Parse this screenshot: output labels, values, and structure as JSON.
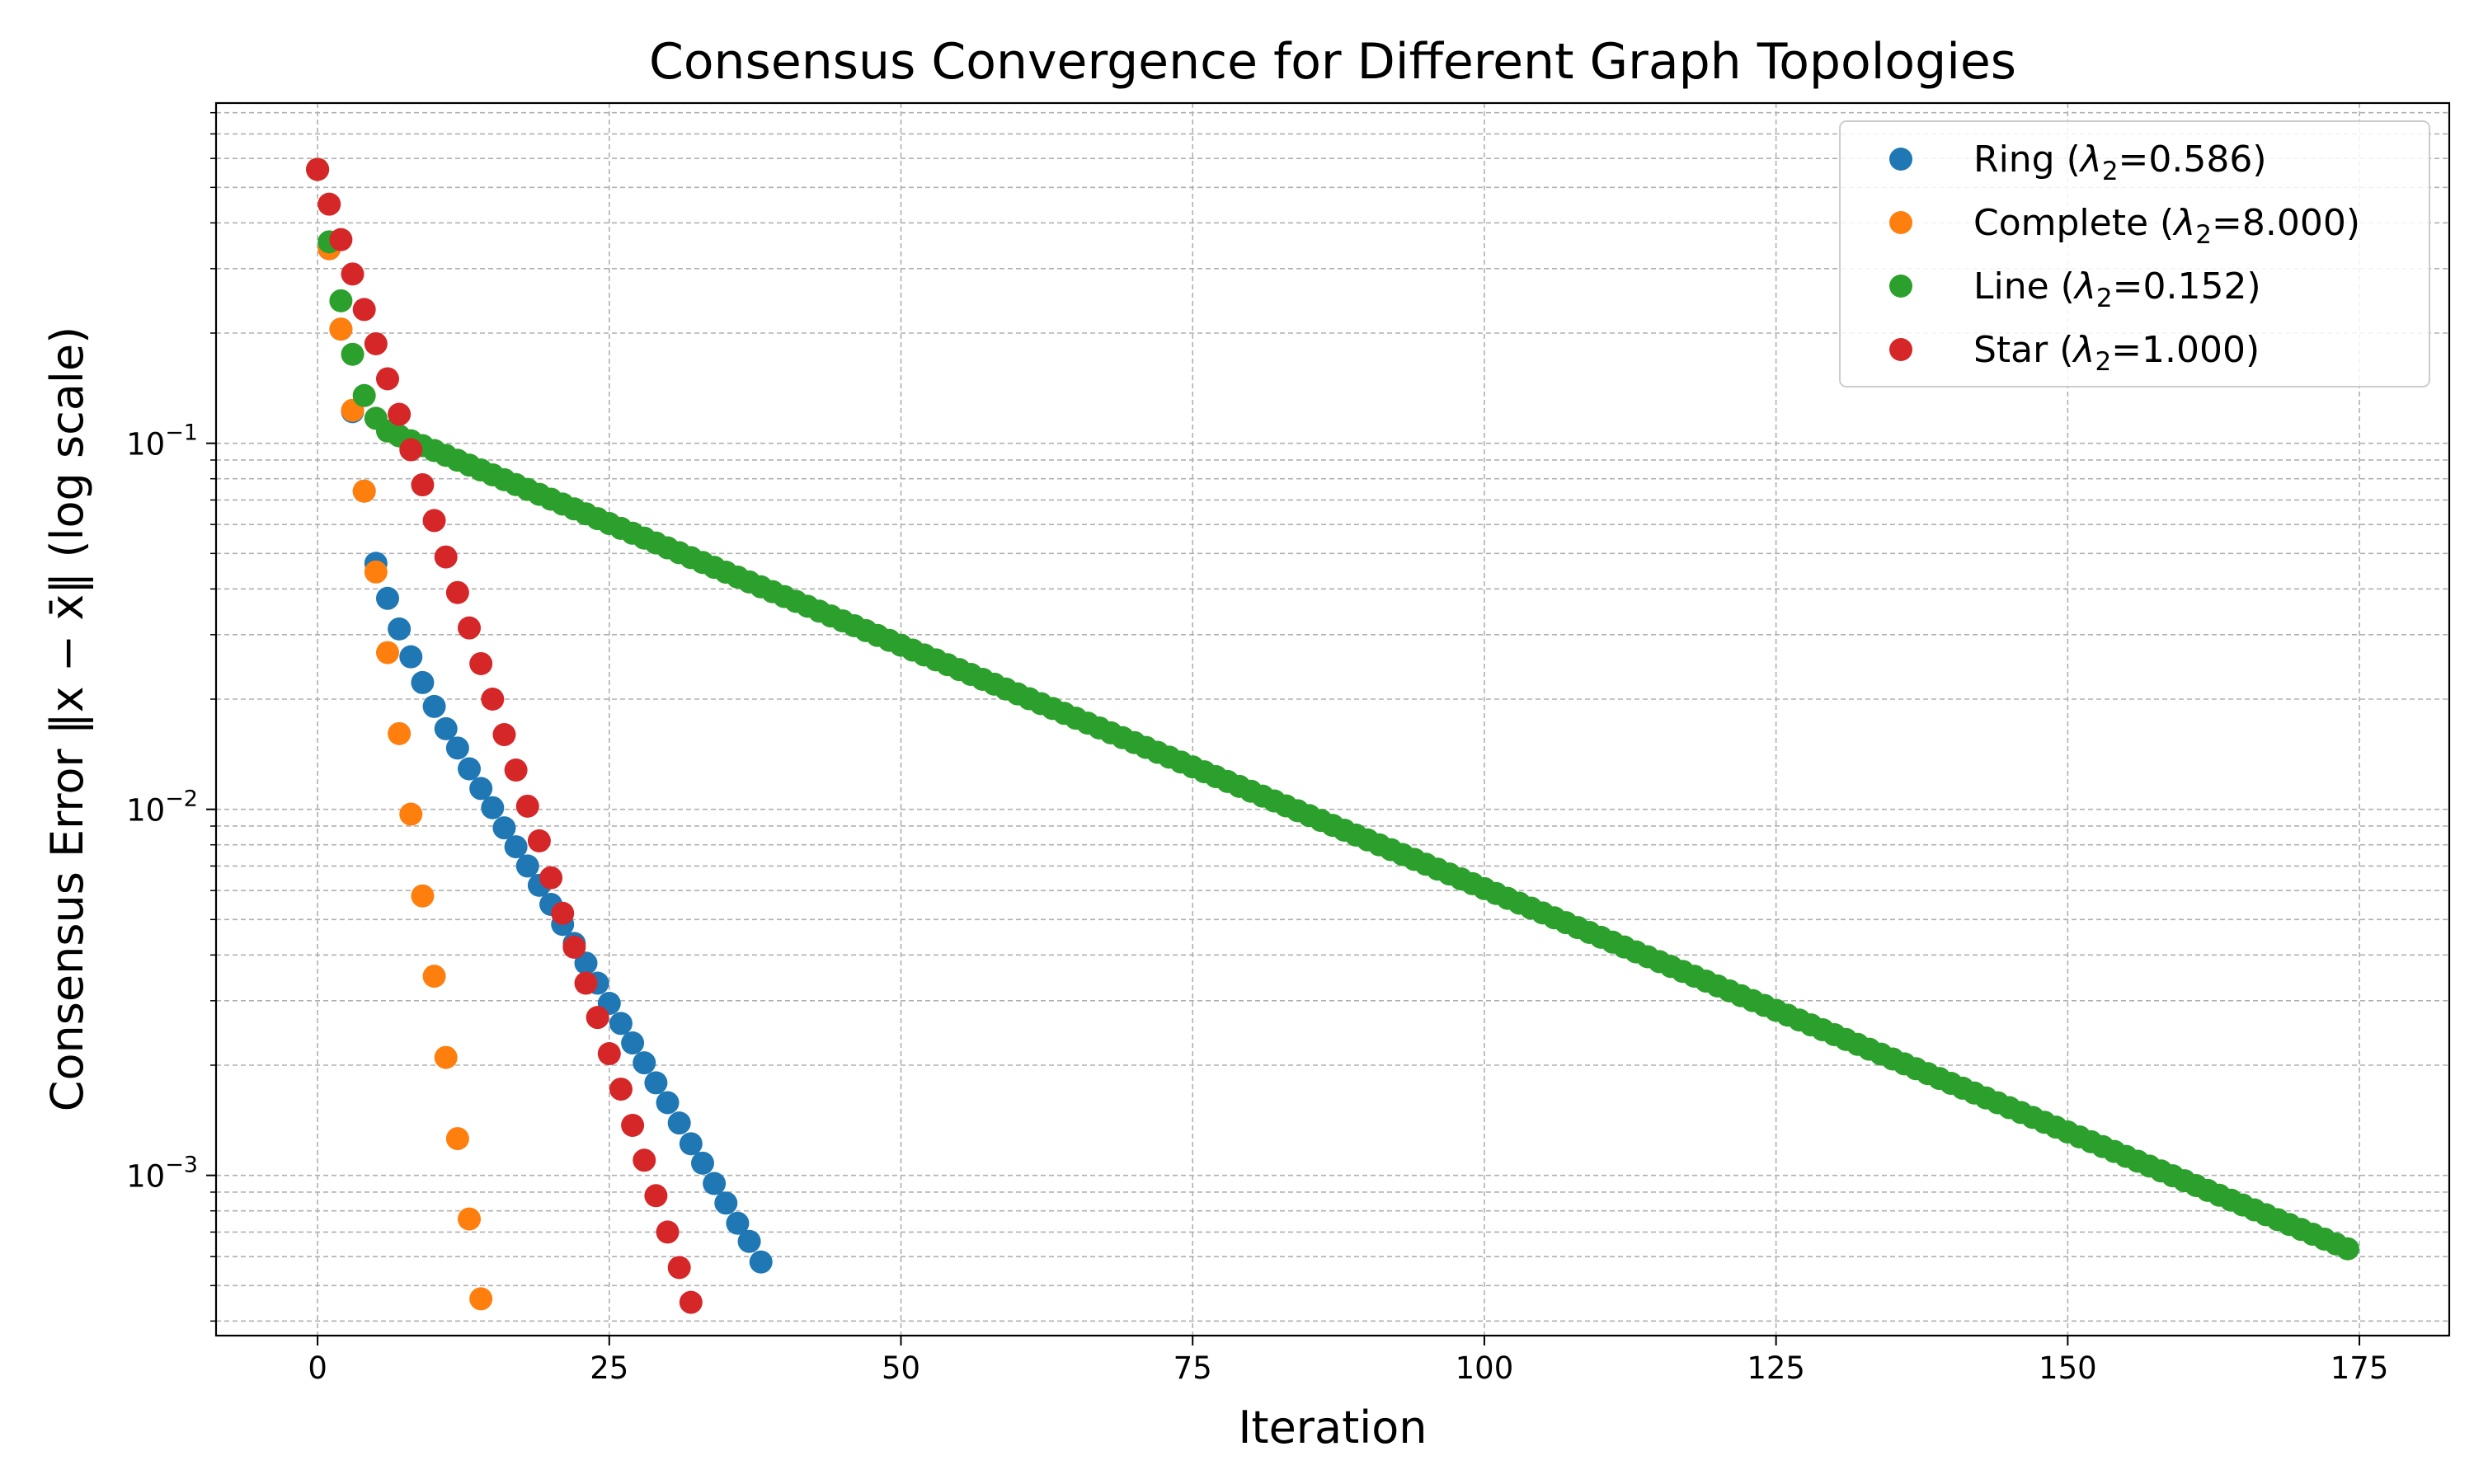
{
  "chart_data": {
    "type": "scatter",
    "title": "Consensus Convergence for Different Graph Topologies",
    "xlabel": "Iteration",
    "ylabel": "Consensus Error ‖x − x̄‖ (log scale)",
    "yscale": "log",
    "xlim": [
      -8.7,
      182.7
    ],
    "ylim": [
      0.000365,
      0.85
    ],
    "grid": true,
    "legend_position": "top-right",
    "x_ticks": [
      0,
      25,
      50,
      75,
      100,
      125,
      150,
      175
    ],
    "y_ticks": [
      {
        "value": 0.1,
        "base": "10",
        "exp": "−1"
      },
      {
        "value": 0.01,
        "base": "10",
        "exp": "−2"
      },
      {
        "value": 0.001,
        "base": "10",
        "exp": "−3"
      }
    ],
    "series": [
      {
        "name": "Ring",
        "lambda": "0.586",
        "color": "#1f77b4",
        "x": [
          0,
          1,
          2,
          3,
          4,
          5,
          6,
          7,
          8,
          9,
          10,
          11,
          12,
          13,
          14,
          15,
          16,
          17,
          18,
          19,
          20,
          21,
          22,
          23,
          24,
          25,
          26,
          27,
          28,
          29,
          30,
          31,
          32,
          33,
          34,
          35,
          36,
          37,
          38
        ],
        "y": [
          0.56,
          0.34,
          0.205,
          0.122,
          0.074,
          0.047,
          0.0377,
          0.0311,
          0.0261,
          0.0222,
          0.0191,
          0.0166,
          0.0147,
          0.0129,
          0.0114,
          0.0101,
          0.0089,
          0.0079,
          0.007,
          0.0062,
          0.0055,
          0.00485,
          0.0043,
          0.0038,
          0.00335,
          0.00295,
          0.0026,
          0.0023,
          0.00203,
          0.00179,
          0.00158,
          0.00139,
          0.00122,
          0.00108,
          0.00095,
          0.00084,
          0.00074,
          0.00066,
          0.00058
        ]
      },
      {
        "name": "Complete",
        "lambda": "8.000",
        "color": "#ff7f0e",
        "x": [
          0,
          1,
          2,
          3,
          4,
          5,
          6,
          7,
          8,
          9,
          10,
          11,
          12,
          13,
          14
        ],
        "y": [
          0.56,
          0.34,
          0.205,
          0.123,
          0.074,
          0.0445,
          0.0268,
          0.0161,
          0.0097,
          0.0058,
          0.0035,
          0.0021,
          0.00126,
          0.00076,
          0.00046
        ]
      },
      {
        "name": "Line",
        "lambda": "0.152",
        "color": "#2ca02c",
        "x_range": [
          0,
          174
        ],
        "y_head": [
          0.56,
          0.355,
          0.245,
          0.175,
          0.135,
          0.117,
          0.108
        ],
        "y_tail_start": 0.108,
        "y_end": 0.00063
      },
      {
        "name": "Star",
        "lambda": "1.000",
        "color": "#d62728",
        "x": [
          0,
          1,
          2,
          3,
          4,
          5,
          6,
          7,
          8,
          9,
          10,
          11,
          12,
          13,
          14,
          15,
          16,
          17,
          18,
          19,
          20,
          21,
          22,
          23,
          24,
          25,
          26,
          27,
          28,
          29,
          30,
          31,
          32
        ],
        "y": [
          0.56,
          0.45,
          0.36,
          0.29,
          0.232,
          0.187,
          0.15,
          0.12,
          0.096,
          0.077,
          0.0615,
          0.0489,
          0.0391,
          0.0313,
          0.025,
          0.02,
          0.016,
          0.0128,
          0.0102,
          0.0082,
          0.0065,
          0.0052,
          0.0042,
          0.00335,
          0.0027,
          0.00215,
          0.00172,
          0.00137,
          0.0011,
          0.00088,
          0.0007,
          0.00056,
          0.00045
        ]
      }
    ]
  }
}
